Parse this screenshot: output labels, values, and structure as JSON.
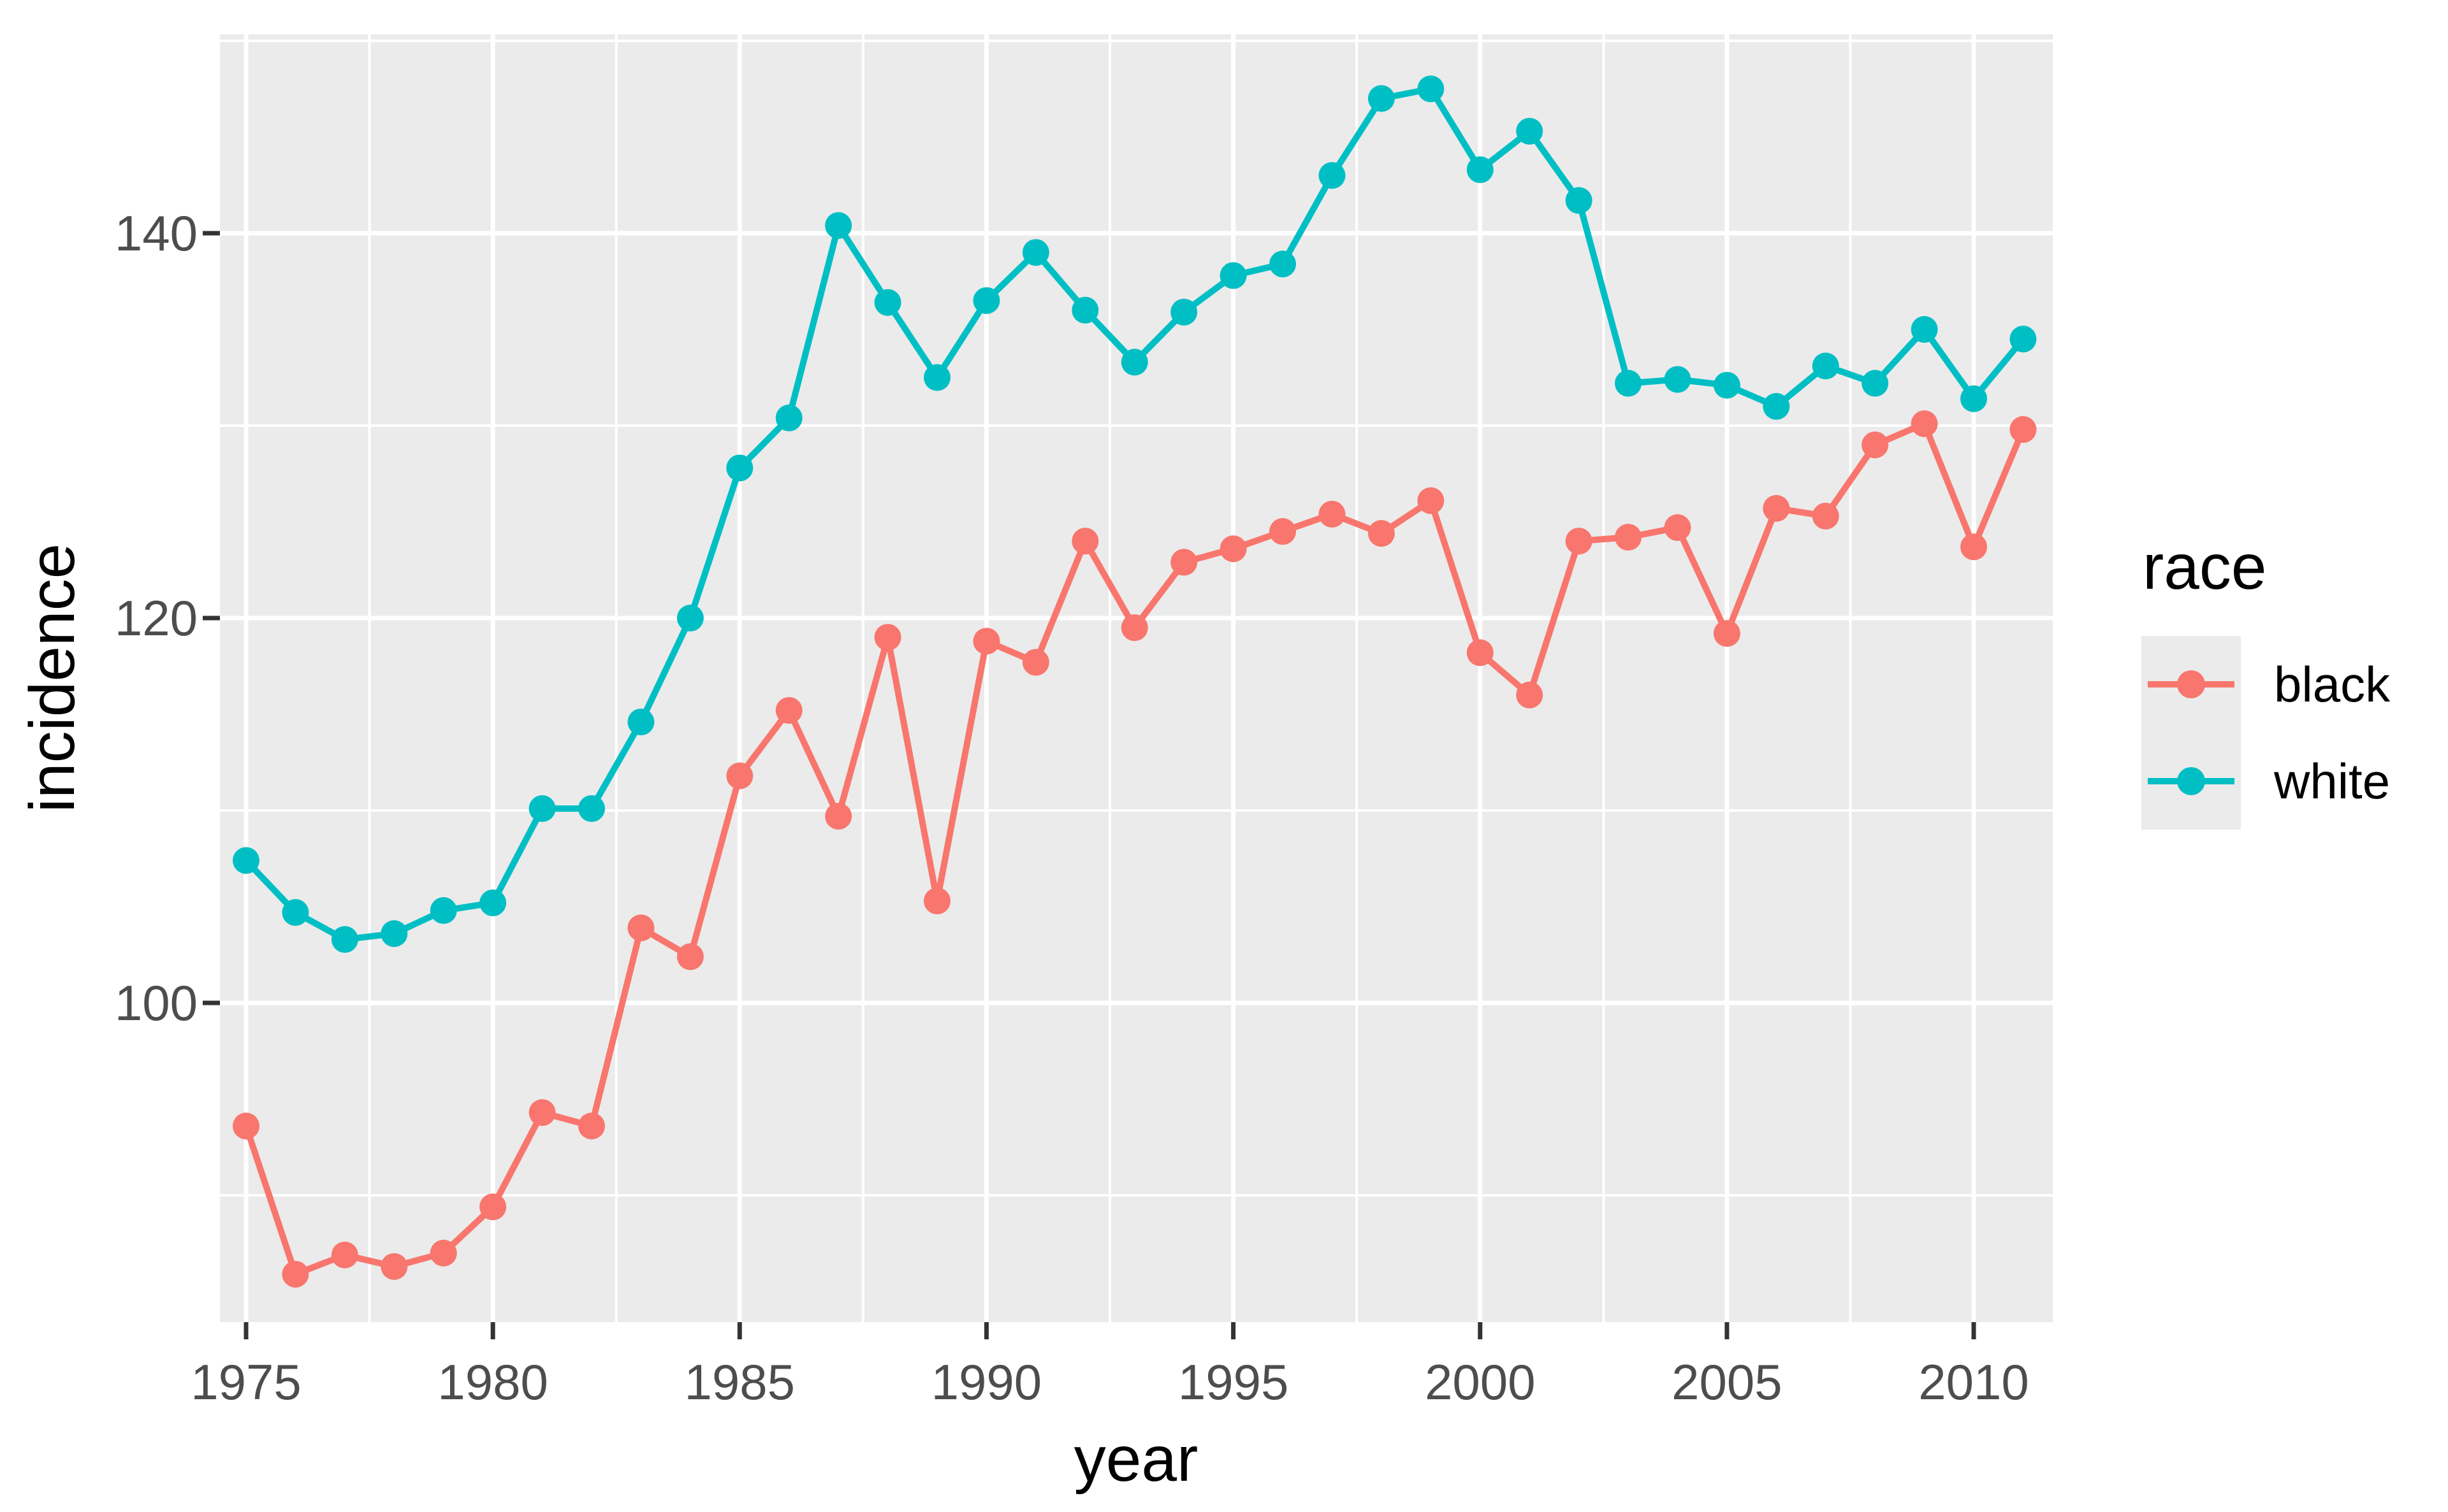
{
  "chart_data": {
    "type": "line",
    "title": "",
    "xlabel": "year",
    "ylabel": "incidence",
    "x": [
      1975,
      1976,
      1977,
      1978,
      1979,
      1980,
      1981,
      1982,
      1983,
      1984,
      1985,
      1986,
      1987,
      1988,
      1989,
      1990,
      1991,
      1992,
      1993,
      1994,
      1995,
      1996,
      1997,
      1998,
      1999,
      2000,
      2001,
      2002,
      2003,
      2004,
      2005,
      2006,
      2007,
      2008,
      2009,
      2010,
      2011
    ],
    "series": [
      {
        "name": "black",
        "color": "#F8766D",
        "values": [
          93.6,
          85.9,
          86.9,
          86.3,
          87.0,
          89.4,
          94.3,
          93.6,
          103.9,
          102.4,
          111.8,
          115.2,
          109.7,
          119.0,
          105.3,
          118.8,
          117.7,
          124.0,
          119.5,
          122.9,
          123.6,
          124.5,
          125.4,
          124.4,
          126.1,
          118.2,
          116.0,
          124.0,
          124.2,
          124.7,
          119.2,
          125.7,
          125.3,
          129.0,
          130.1,
          123.7,
          129.8
        ]
      },
      {
        "name": "white",
        "color": "#00BFC4",
        "values": [
          107.4,
          104.7,
          103.3,
          103.6,
          104.8,
          105.2,
          110.1,
          110.1,
          114.6,
          120.0,
          127.8,
          130.4,
          140.4,
          136.4,
          132.5,
          136.5,
          139.0,
          136.0,
          133.3,
          135.9,
          137.8,
          138.4,
          143.0,
          147.0,
          147.5,
          143.3,
          145.3,
          141.7,
          132.2,
          132.4,
          132.1,
          131.0,
          133.1,
          132.2,
          135.0,
          131.4,
          134.5
        ]
      }
    ],
    "xlim": [
      1974.45,
      2011.6
    ],
    "ylim": [
      83.4,
      150.3
    ],
    "x_tick_labels": [
      "1975",
      "1980",
      "1985",
      "1990",
      "1995",
      "2000",
      "2005",
      "2010"
    ],
    "x_major_ticks": [
      1975,
      1980,
      1985,
      1990,
      1995,
      2000,
      2005,
      2010
    ],
    "x_minor_gridlines": [
      1977.5,
      1982.5,
      1987.5,
      1992.5,
      1997.5,
      2002.5,
      2007.5
    ],
    "y_tick_labels": [
      "100",
      "120",
      "140"
    ],
    "y_major_ticks": [
      100,
      120,
      140
    ],
    "y_minor_gridlines": [
      90,
      110,
      130,
      150
    ],
    "grid": "on",
    "legend_position": "right",
    "panel_background": "#EBEBEB",
    "gridline_color": "#FFFFFF",
    "axis_text_color": "#4D4D4D",
    "tick_mark_color": "#333333"
  },
  "axes": {
    "x_title": "year",
    "y_title": "incidence"
  },
  "legend": {
    "title": "race",
    "items": [
      {
        "label": "black",
        "color": "#F8766D"
      },
      {
        "label": "white",
        "color": "#00BFC4"
      }
    ]
  }
}
